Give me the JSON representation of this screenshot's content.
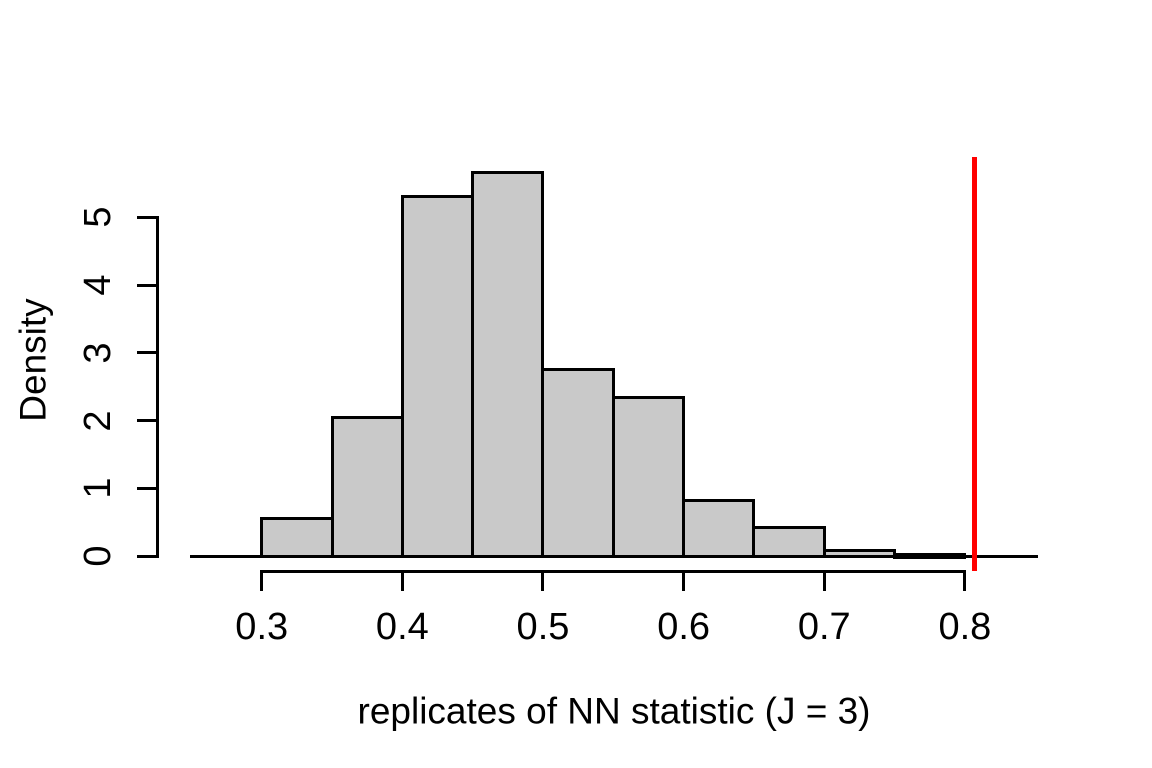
{
  "figure": {
    "background": "#FFFFFF"
  },
  "chart_data": {
    "type": "bar",
    "subtype": "histogram-density",
    "title": "",
    "xlabel": "replicates of NN statistic (J = 3)",
    "ylabel": "Density",
    "bin_width": 0.05,
    "bins": [
      {
        "start": 0.3,
        "end": 0.35,
        "density": 0.56
      },
      {
        "start": 0.35,
        "end": 0.4,
        "density": 2.04
      },
      {
        "start": 0.4,
        "end": 0.45,
        "density": 5.3
      },
      {
        "start": 0.45,
        "end": 0.5,
        "density": 5.66
      },
      {
        "start": 0.5,
        "end": 0.55,
        "density": 2.76
      },
      {
        "start": 0.55,
        "end": 0.6,
        "density": 2.34
      },
      {
        "start": 0.6,
        "end": 0.65,
        "density": 0.82
      },
      {
        "start": 0.65,
        "end": 0.7,
        "density": 0.42
      },
      {
        "start": 0.7,
        "end": 0.75,
        "density": 0.08
      },
      {
        "start": 0.75,
        "end": 0.8,
        "density": 0.02
      }
    ],
    "x_ticks": [
      0.3,
      0.4,
      0.5,
      0.6,
      0.7,
      0.8
    ],
    "x_tick_labels": [
      "0.3",
      "0.4",
      "0.5",
      "0.6",
      "0.7",
      "0.8"
    ],
    "y_ticks": [
      0,
      1,
      2,
      3,
      4,
      5
    ],
    "y_tick_labels": [
      "0",
      "1",
      "2",
      "3",
      "4",
      "5"
    ],
    "xlim": [
      0.249,
      0.852
    ],
    "ylim": [
      -0.22,
      5.89
    ],
    "reference_line": {
      "orientation": "vertical",
      "x": 0.807,
      "color": "#FF0000"
    },
    "colors": {
      "bar_fill": "#C9C9C9",
      "bar_border": "#000000",
      "axis": "#000000",
      "background": "#FFFFFF"
    },
    "grid": false,
    "legend": "none"
  }
}
